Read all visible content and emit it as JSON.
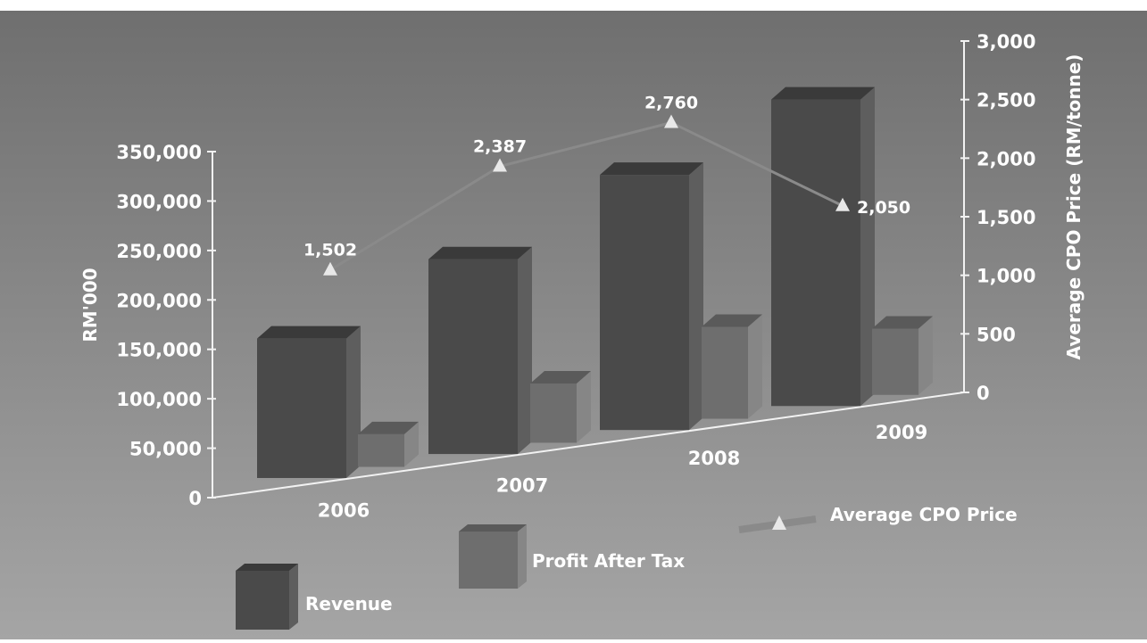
{
  "chart_data": {
    "type": "bar",
    "categories": [
      "2006",
      "2007",
      "2008",
      "2009"
    ],
    "series": [
      {
        "name": "Revenue",
        "kind": "bar",
        "axis": "left",
        "values": [
          141000,
          197000,
          258000,
          310000
        ]
      },
      {
        "name": "Profit After Tax",
        "kind": "bar",
        "axis": "left",
        "values": [
          33000,
          60000,
          93000,
          67000
        ]
      },
      {
        "name": "Average CPO Price",
        "kind": "line",
        "axis": "right",
        "values": [
          1502,
          2387,
          2760,
          2050
        ]
      }
    ],
    "point_labels": [
      "1,502",
      "2,387",
      "2,760",
      "2,050"
    ],
    "left_axis": {
      "label": "RM'000",
      "ticks": [
        "0",
        "50,000",
        "100,000",
        "150,000",
        "200,000",
        "250,000",
        "300,000",
        "350,000"
      ],
      "ylim": [
        0,
        350000
      ]
    },
    "right_axis": {
      "label": "Average CPO Price (RM/tonne)",
      "ticks": [
        "0",
        "500",
        "1,000",
        "1,500",
        "2,000",
        "2,500",
        "3,000"
      ],
      "ylim": [
        0,
        3000
      ]
    },
    "legend": [
      "Revenue",
      "Profit After Tax",
      "Average CPO Price"
    ],
    "legend_position": "bottom",
    "grid": false,
    "style": "3d",
    "colors": {
      "revenue_front": "#4a4a4a",
      "revenue_top": "#3a3a3a",
      "revenue_side": "#5e5e5e",
      "profit_front": "#6e6e6e",
      "profit_top": "#5a5a5a",
      "profit_side": "#868686",
      "line": "#8a8a8a",
      "marker": "#e8e8e8",
      "text": "#ffffff",
      "background_top": "#6f6f6f",
      "background_bottom": "#a5a5a5"
    }
  }
}
